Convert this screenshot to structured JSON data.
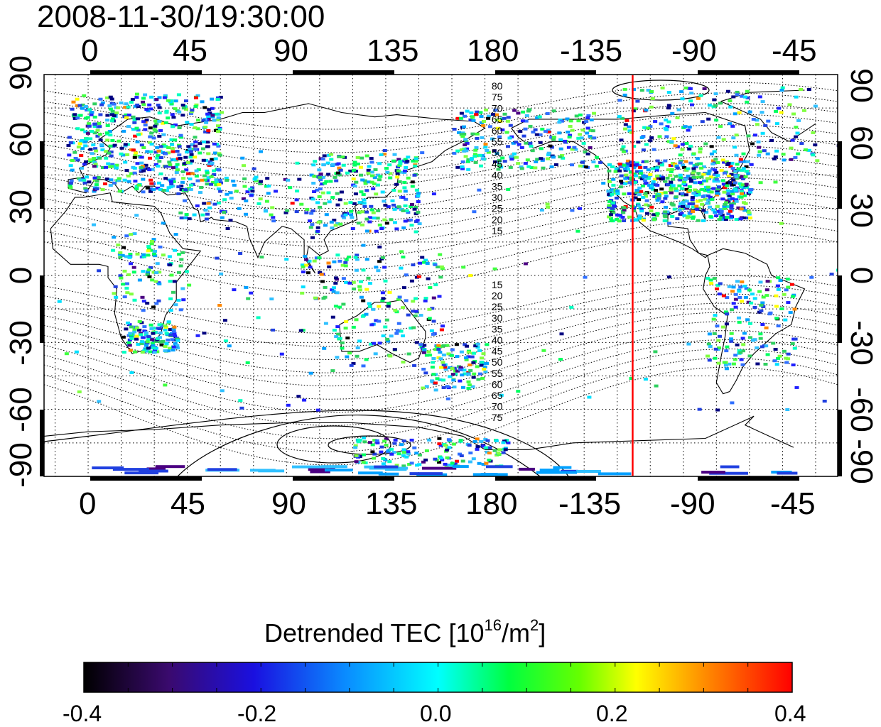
{
  "title": "2008-11-30/19:30:00",
  "top_lon_ticks": [
    "0",
    "45",
    "90",
    "135",
    "180",
    "-135",
    "-90",
    "-45"
  ],
  "bottom_lon_ticks": [
    "0",
    "45",
    "90",
    "135",
    "180",
    "-135",
    "-90",
    "-45"
  ],
  "left_lat_ticks": [
    "90",
    "60",
    "30",
    "0",
    "-30",
    "-60",
    "-90"
  ],
  "right_lat_ticks": [
    "90",
    "60",
    "30",
    "0",
    "-30",
    "-60",
    "-90"
  ],
  "contour_labels_north": [
    "80",
    "75",
    "70",
    "65",
    "60",
    "55",
    "50",
    "45",
    "40",
    "35",
    "30",
    "25",
    "20",
    "15"
  ],
  "contour_labels_south": [
    "15",
    "20",
    "25",
    "30",
    "35",
    "40",
    "45",
    "50",
    "55",
    "60",
    "65",
    "70",
    "75"
  ],
  "colorbar": {
    "title_main": "Detrended TEC  [10",
    "title_exp": "16",
    "title_unit": "/m",
    "title_exp2": "2",
    "title_end": "]",
    "ticks": [
      "-0.4",
      "-0.2",
      "0.0",
      "0.2",
      "0.4"
    ],
    "min": -0.4,
    "max": 0.4
  },
  "map": {
    "lon_start": -20,
    "lat_range": [
      -90,
      90
    ],
    "terminator_lon": -113,
    "terminator_color": "#ff0000"
  },
  "colors": {
    "scale": [
      "#000000",
      "#4b0082",
      "#0000ff",
      "#00ffff",
      "#00ff00",
      "#ffff00",
      "#ff0000"
    ]
  }
}
